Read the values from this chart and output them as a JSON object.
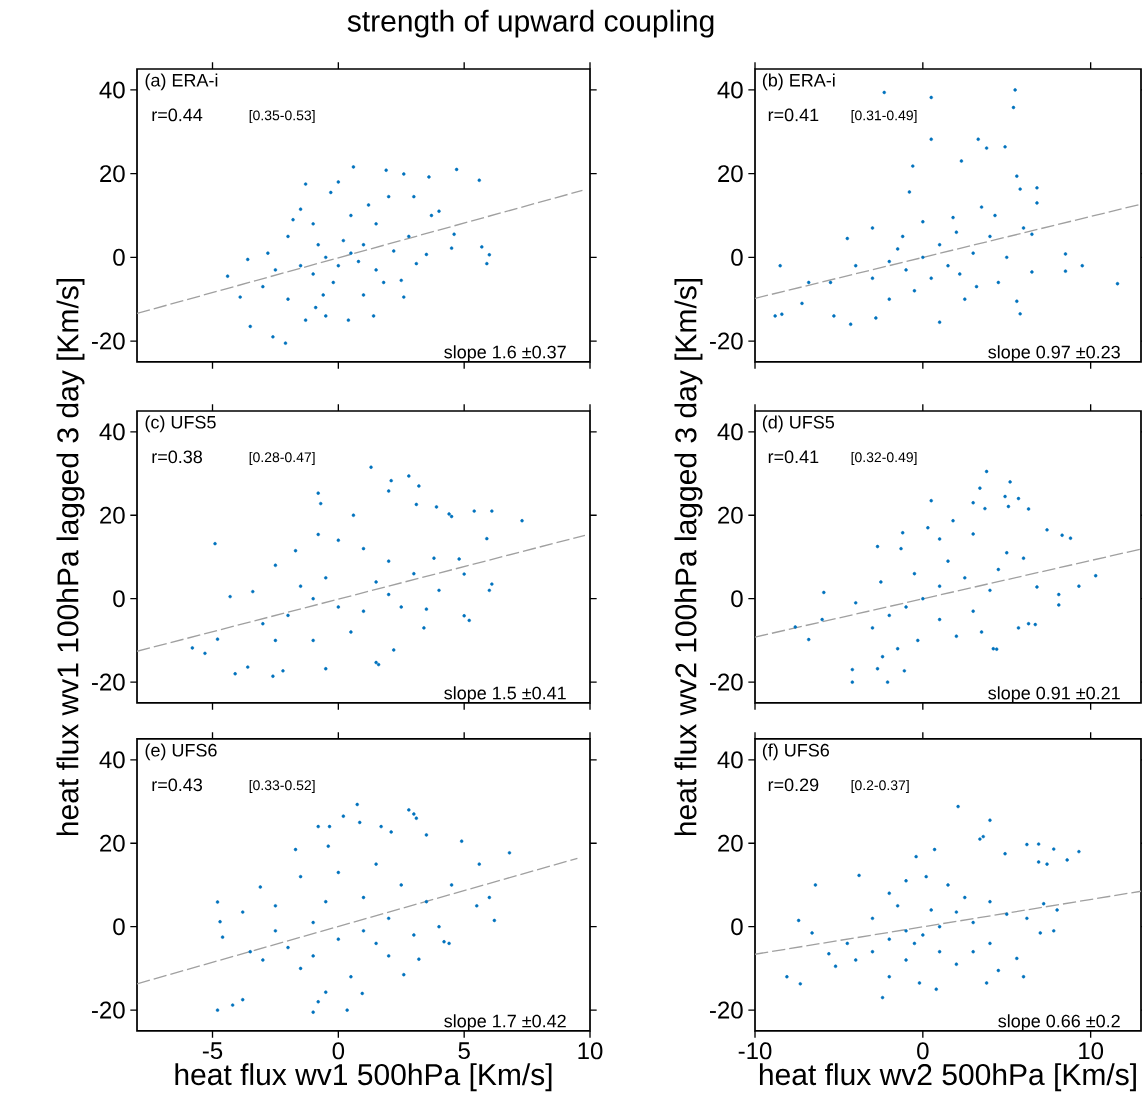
{
  "chart_data": [
    {
      "type": "scatter",
      "title": "strength of upward coupling",
      "xlim": [
        -8,
        10
      ],
      "xticks": [
        -5,
        0,
        5,
        10
      ],
      "ylim": [
        -25,
        45
      ],
      "yticks": [
        -20,
        0,
        20,
        40
      ],
      "tick_labels": "y",
      "annotations": [
        "(a) ERA-i",
        "r=0.44",
        "[0.35-0.53]",
        "slope 1.6  ±0.37"
      ],
      "series": [
        {
          "marker": "circle",
          "color": "#0072bd",
          "x": [
            0.6,
            1.9,
            4.7,
            5.6,
            3.6,
            2.6,
            -1.3,
            -1.5,
            -0.3,
            0,
            1.2,
            -2.6,
            -1.3,
            -0.5,
            -2.1,
            -3.5,
            -4.4,
            -3.9,
            -3.6,
            5.9,
            6.0,
            5.7,
            4.6,
            4.5,
            3.7,
            3.0,
            2.5,
            2.6,
            0.4,
            1.4,
            -0.9,
            -0.6,
            1.8,
            3.1,
            2.8,
            1.5,
            0.5,
            -1,
            -2,
            -2.5,
            -3,
            -1.5,
            -0.5,
            0,
            0.5,
            1,
            -1,
            0.2,
            1.5,
            -2,
            2.2,
            -0.2,
            3.5,
            -2.8,
            1,
            4,
            2,
            -0.8,
            0.8,
            -1.8
          ],
          "values": [
            21.6,
            20.8,
            21,
            18.4,
            19.2,
            19.9,
            17.5,
            11.5,
            15.5,
            18,
            12.5,
            -19,
            -15,
            -14,
            -20.5,
            -16.5,
            -4.5,
            -9.5,
            -0.5,
            -1.5,
            0.6,
            2.5,
            5.5,
            2.2,
            10,
            14.5,
            -5.5,
            -9.5,
            -15,
            -14,
            -12,
            -9,
            -6,
            -1.5,
            5,
            8,
            10,
            8,
            5,
            -3,
            -7,
            -2,
            0,
            -2,
            1,
            3,
            -4,
            4,
            -3,
            -10,
            1.5,
            -6,
            0.7,
            1,
            -9,
            11,
            14.5,
            3,
            -1,
            9
          ]
        },
        {
          "type": "line",
          "line_style": "dashed",
          "color": "#a0a0a0",
          "x": [
            -8,
            9.7
          ],
          "values": [
            -13.4,
            16
          ]
        }
      ]
    },
    {
      "type": "scatter",
      "xlim": [
        -10,
        13
      ],
      "xticks": [
        -10,
        0,
        10
      ],
      "ylim": [
        -25,
        45
      ],
      "yticks": [
        -20,
        0,
        20,
        40
      ],
      "tick_labels": "y",
      "annotations": [
        "(b) ERA-i",
        "r=0.41",
        "[0.31-0.49]",
        "slope 0.97  ±0.23"
      ],
      "series": [
        {
          "marker": "circle",
          "color": "#0072bd",
          "x": [
            -8.8,
            -8.4,
            -8.5,
            -2.3,
            0.5,
            5.5,
            5.4,
            0.5,
            3.3,
            4.9,
            3.8,
            -0.6,
            2.3,
            -0.8,
            5.8,
            5.6,
            6.8,
            6.8,
            11.6,
            8.5,
            9.5,
            8.5,
            6.5,
            5.6,
            5.8,
            -4.3,
            -2.8,
            1,
            -5.3,
            -7.2,
            -6.8,
            -4.5,
            -3.0,
            0,
            2,
            3.5,
            4.3,
            4.0,
            3,
            1.5,
            0,
            -1,
            -2,
            -3,
            1,
            -0.5,
            2.2,
            -1.5,
            0.5,
            -4,
            5,
            4.5,
            6,
            6.5,
            -2,
            2.5,
            -5.5,
            3.2,
            1.8,
            -1.2
          ],
          "values": [
            -14,
            -13.6,
            -2,
            39.4,
            38.2,
            40,
            35.8,
            28.2,
            28.2,
            26.4,
            26.1,
            21.8,
            23,
            15.6,
            16.3,
            19.4,
            16.6,
            13,
            -6.3,
            -3.3,
            -2,
            0.8,
            -3.5,
            -10.5,
            -13.5,
            -16,
            -14.5,
            -15.5,
            -14,
            -11,
            -6,
            4.5,
            7,
            8.5,
            6,
            12,
            10,
            5,
            1,
            -2,
            0,
            -3,
            -1,
            -5,
            3,
            -8,
            -4,
            2,
            -5,
            -2,
            0,
            -6,
            7,
            5.5,
            -10,
            -10,
            -6,
            -7,
            9.5,
            5
          ]
        },
        {
          "type": "line",
          "line_style": "dashed",
          "color": "#a0a0a0",
          "x": [
            -10,
            13
          ],
          "values": [
            -9.8,
            12.7
          ]
        }
      ]
    },
    {
      "type": "scatter",
      "ylabel": "heat flux wv1 100hPa lagged 3 day [Km/s]",
      "xlim": [
        -8,
        10
      ],
      "xticks": [
        -5,
        0,
        5,
        10
      ],
      "ylim": [
        -25,
        45
      ],
      "yticks": [
        -20,
        0,
        20,
        40
      ],
      "tick_labels": "y",
      "annotations": [
        "(c) UFS5",
        "r=0.38",
        "[0.28-0.47]",
        "slope 1.5  ±0.41"
      ],
      "series": [
        {
          "marker": "circle",
          "color": "#0072bd",
          "x": [
            1.3,
            2.1,
            2,
            2.8,
            3.2,
            -0.8,
            -0.7,
            3.1,
            3.9,
            4.4,
            5.4,
            6.1,
            7.3,
            5.9,
            4.5,
            -4.9,
            0.6,
            -0.8,
            -5.8,
            -5.3,
            -4.8,
            -4.1,
            -3.6,
            -2.6,
            -2.2,
            -0.5,
            1.5,
            1.6,
            2.2,
            3.4,
            5.2,
            5,
            6.1,
            6,
            5,
            4.8,
            3.8,
            -4.3,
            -3.4,
            -2.5,
            -1.7,
            0,
            1,
            2,
            3,
            2,
            1,
            0,
            -1,
            -2,
            -3,
            -1,
            0.5,
            2.5,
            -0.5,
            1.5,
            -1.5,
            4,
            3.5,
            -2.5
          ],
          "values": [
            31.5,
            28.3,
            25.8,
            29.4,
            27,
            25.3,
            22.8,
            22.6,
            22,
            20.3,
            21,
            21,
            18.7,
            14.4,
            19.7,
            13.2,
            20,
            15.4,
            -11.8,
            -13.1,
            -9.7,
            -18,
            -16.4,
            -18.6,
            -17.3,
            -16.8,
            -15.3,
            -15.8,
            -12.3,
            -7,
            -5.2,
            -4.1,
            3.5,
            2,
            5.9,
            9.5,
            9.7,
            0.5,
            1.7,
            8,
            11.5,
            14,
            12,
            9,
            6,
            1,
            -3,
            -2,
            0,
            -4,
            -6,
            -10,
            -8,
            -2,
            5,
            4,
            3,
            2,
            -2.5,
            -10
          ]
        },
        {
          "type": "line",
          "line_style": "dashed",
          "color": "#a0a0a0",
          "x": [
            -8,
            9.8
          ],
          "values": [
            -12.6,
            15.2
          ]
        }
      ]
    },
    {
      "type": "scatter",
      "ylabel": "heat flux wv2 100hPa lagged 3 day  [Km/s]",
      "xlim": [
        -10,
        13
      ],
      "xticks": [
        -10,
        0,
        10
      ],
      "ylim": [
        -25,
        45
      ],
      "yticks": [
        -20,
        0,
        20,
        40
      ],
      "tick_labels": "y",
      "annotations": [
        "(d) UFS5",
        "r=0.41",
        "[0.32-0.49]",
        "slope 0.91  ±0.21"
      ],
      "series": [
        {
          "marker": "circle",
          "color": "#0072bd",
          "x": [
            3.8,
            5.2,
            3.4,
            3,
            3.7,
            4.9,
            5.7,
            5.1,
            6.3,
            0.5,
            1.8,
            7.4,
            8.3,
            8.8,
            10.3,
            9.3,
            8.1,
            8.1,
            6.7,
            6.3,
            4.2,
            4.4,
            5.7,
            -4.2,
            -2.1,
            -2.4,
            -1.1,
            -2.7,
            -4.2,
            -6.8,
            -7.6,
            -6,
            -5.9,
            -2.7,
            -1.3,
            0.3,
            -1.2,
            1,
            3,
            5,
            6,
            4.5,
            2.5,
            1,
            0,
            -1,
            -2,
            -3,
            1,
            3,
            -0.5,
            -2.5,
            2,
            -0.3,
            4,
            6.8,
            -4,
            1.5,
            -1.5,
            3.5
          ],
          "values": [
            30.5,
            28,
            26.5,
            23,
            21.6,
            24.5,
            24,
            22.1,
            21.5,
            23.5,
            18.7,
            16.5,
            15.2,
            14.5,
            5.5,
            3,
            1,
            -1.5,
            -6.2,
            -6,
            -12,
            -12.1,
            -7,
            -20,
            -20,
            -13.9,
            -17.3,
            -16.8,
            -17,
            -9.8,
            -6.8,
            -5,
            1.5,
            12.5,
            12,
            17,
            15.8,
            14.3,
            15.5,
            11,
            9.7,
            7,
            5,
            3,
            0,
            -2,
            -4,
            -7,
            -5,
            -3,
            6,
            4,
            -9,
            -10,
            2,
            2.8,
            -1,
            9,
            -12,
            -8
          ]
        },
        {
          "type": "line",
          "line_style": "dashed",
          "color": "#a0a0a0",
          "x": [
            -10,
            13
          ],
          "values": [
            -9.2,
            11.9
          ]
        }
      ]
    },
    {
      "type": "scatter",
      "xlabel": "heat flux wv1 500hPa [Km/s]",
      "xlim": [
        -8,
        10
      ],
      "xticks": [
        -5,
        0,
        5,
        10
      ],
      "ylim": [
        -25,
        45
      ],
      "yticks": [
        -20,
        0,
        20,
        40
      ],
      "annotations": [
        "(e) UFS6",
        "r=0.43",
        "[0.33-0.52]",
        "slope 1.7  ±0.42"
      ],
      "series": [
        {
          "marker": "circle",
          "color": "#0072bd",
          "x": [
            0.75,
            0.2,
            0.85,
            2.8,
            3,
            3.1,
            -0.8,
            -0.35,
            1.7,
            2.1,
            3.5,
            4.9,
            6.8,
            5.6,
            -1.7,
            -0.4,
            -4.8,
            -4.7,
            -4.6,
            -4.8,
            -4.2,
            -3.8,
            -1.0,
            -0.8,
            0.35,
            0.95,
            -0.5,
            2.6,
            3.2,
            4.4,
            4.2,
            6.2,
            6.0,
            5.5,
            4.5,
            -3.1,
            -3.8,
            -2.5,
            -1.5,
            0,
            1.5,
            2.5,
            3.5,
            2,
            1,
            0,
            -1,
            -2,
            -3,
            -1.5,
            0.5,
            2,
            -0.5,
            1,
            -2.5,
            3,
            -1,
            1.5,
            4,
            -3.5
          ],
          "values": [
            29.3,
            26.5,
            25,
            28,
            27,
            26,
            24,
            24,
            24,
            22.7,
            22,
            20.5,
            17.7,
            15,
            18.5,
            19.3,
            5.9,
            1.2,
            -2.5,
            -20,
            -18.8,
            -17.5,
            -20.5,
            -18,
            -20,
            -16,
            -15.7,
            -11.5,
            -7.8,
            -4,
            -3.6,
            1.5,
            7,
            5,
            10,
            9.5,
            3.5,
            5,
            12,
            13,
            15,
            10,
            6,
            2,
            -1,
            -3,
            1,
            -5,
            -8,
            -10,
            -12,
            -7,
            6,
            7,
            -1,
            -2,
            -7,
            -4,
            0,
            -6
          ]
        },
        {
          "type": "line",
          "line_style": "dashed",
          "color": "#a0a0a0",
          "x": [
            -8,
            9.5
          ],
          "values": [
            -13.7,
            16.4
          ]
        }
      ]
    },
    {
      "type": "scatter",
      "xlabel": "heat flux wv2 500hPa [Km/s]",
      "xlim": [
        -10,
        13
      ],
      "xticks": [
        -10,
        0,
        10
      ],
      "ylim": [
        -25,
        45
      ],
      "yticks": [
        -20,
        0,
        20,
        40
      ],
      "annotations": [
        "(f) UFS6",
        "r=0.29",
        "[0.2-0.37]",
        "slope 0.66  ±0.2"
      ],
      "series": [
        {
          "marker": "circle",
          "color": "#0072bd",
          "x": [
            2.1,
            4,
            3.6,
            3.4,
            6.2,
            6.9,
            7.8,
            9.3,
            8.6,
            6.9,
            7.4,
            4.9,
            0.7,
            -0.4,
            -3.8,
            -6.4,
            -7.4,
            -8.1,
            -7.3,
            -2.4,
            0.8,
            -0.2,
            3.8,
            6,
            4.5,
            5.6,
            7.8,
            7,
            8,
            6.2,
            7.2,
            -5.6,
            -5.2,
            -6.6,
            -4.5,
            -3,
            -2,
            -1,
            0.2,
            1.5,
            2.5,
            4,
            5,
            3,
            1,
            0,
            -1,
            -2,
            -3,
            -1,
            1,
            2,
            -2,
            4,
            0.5,
            -1.5,
            2,
            -0.5,
            3,
            -4
          ],
          "values": [
            28.8,
            25.5,
            21.6,
            21,
            19.7,
            19.8,
            18.6,
            18,
            16,
            15.5,
            15,
            17.5,
            18.5,
            16.8,
            12.3,
            10,
            1.5,
            -12,
            -13.7,
            -17,
            -15,
            -13.5,
            -13.5,
            -12,
            -10.5,
            -7.6,
            -1,
            -1.5,
            4,
            2,
            5.5,
            -6.5,
            -9.5,
            -1.5,
            -4,
            2,
            8,
            11,
            12,
            10,
            7,
            6,
            3,
            1,
            0,
            -2,
            -1,
            -3,
            -6,
            -8,
            -6,
            -9,
            -12,
            -4,
            4,
            5,
            3.5,
            -4,
            -6,
            -8
          ]
        },
        {
          "type": "line",
          "line_style": "dashed",
          "color": "#a0a0a0",
          "x": [
            -10,
            13
          ],
          "values": [
            -6.6,
            8.5
          ]
        }
      ]
    }
  ]
}
